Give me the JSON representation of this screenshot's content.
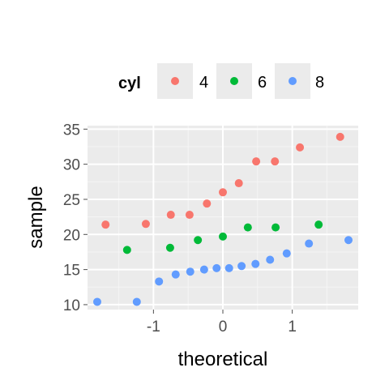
{
  "chart_data": {
    "type": "scatter",
    "xlabel": "theoretical",
    "ylabel": "sample",
    "xlim": [
      -1.95,
      1.95
    ],
    "ylim": [
      9.3,
      35.5
    ],
    "x_ticks": [
      -1,
      0,
      1
    ],
    "y_ticks": [
      10,
      15,
      20,
      25,
      30,
      35
    ],
    "x_tick_labels": [
      "-1",
      "0",
      "1"
    ],
    "y_tick_labels": [
      "10",
      "15",
      "20",
      "25",
      "30",
      "35"
    ],
    "grid": true,
    "legend": {
      "title": "cyl",
      "position": "top"
    },
    "series": [
      {
        "name": "4",
        "color": "#F8766D",
        "points": [
          {
            "x": -1.69,
            "y": 21.4
          },
          {
            "x": -1.11,
            "y": 21.5
          },
          {
            "x": -0.75,
            "y": 22.8
          },
          {
            "x": -0.48,
            "y": 22.8
          },
          {
            "x": -0.23,
            "y": 24.4
          },
          {
            "x": 0.0,
            "y": 26.0
          },
          {
            "x": 0.23,
            "y": 27.3
          },
          {
            "x": 0.48,
            "y": 30.4
          },
          {
            "x": 0.75,
            "y": 30.4
          },
          {
            "x": 1.11,
            "y": 32.4
          },
          {
            "x": 1.69,
            "y": 33.9
          }
        ]
      },
      {
        "name": "6",
        "color": "#00BA38",
        "points": [
          {
            "x": -1.38,
            "y": 17.8
          },
          {
            "x": -0.76,
            "y": 18.1
          },
          {
            "x": -0.36,
            "y": 19.2
          },
          {
            "x": 0.0,
            "y": 19.7
          },
          {
            "x": 0.36,
            "y": 21.0
          },
          {
            "x": 0.76,
            "y": 21.0
          },
          {
            "x": 1.38,
            "y": 21.4
          }
        ]
      },
      {
        "name": "8",
        "color": "#619CFF",
        "points": [
          {
            "x": -1.81,
            "y": 10.4
          },
          {
            "x": -1.24,
            "y": 10.4
          },
          {
            "x": -0.92,
            "y": 13.3
          },
          {
            "x": -0.68,
            "y": 14.3
          },
          {
            "x": -0.47,
            "y": 14.7
          },
          {
            "x": -0.27,
            "y": 15.0
          },
          {
            "x": -0.09,
            "y": 15.2
          },
          {
            "x": 0.09,
            "y": 15.2
          },
          {
            "x": 0.27,
            "y": 15.5
          },
          {
            "x": 0.47,
            "y": 15.8
          },
          {
            "x": 0.68,
            "y": 16.4
          },
          {
            "x": 0.92,
            "y": 17.3
          },
          {
            "x": 1.24,
            "y": 18.7
          },
          {
            "x": 1.81,
            "y": 19.2
          }
        ]
      }
    ]
  }
}
